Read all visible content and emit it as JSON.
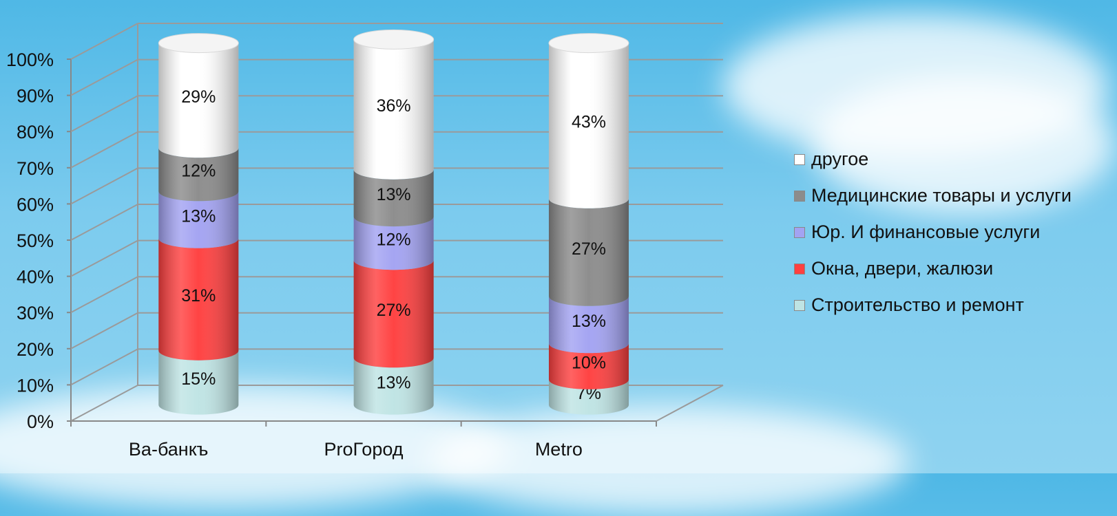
{
  "chart_data": {
    "type": "bar",
    "stacked": true,
    "style": "3d-cylinder",
    "categories": [
      "Ва-банкъ",
      "ProГород",
      "Metro"
    ],
    "series": [
      {
        "name": "Строительство и ремонт",
        "color": "#bfe4e4",
        "values": [
          15,
          13,
          7
        ]
      },
      {
        "name": "Окна, двери, жалюзи",
        "color": "#ff4040",
        "values": [
          31,
          27,
          10
        ]
      },
      {
        "name": "Юр. И финансовые услуги",
        "color": "#a3a3f2",
        "values": [
          13,
          12,
          13
        ]
      },
      {
        "name": "Медицинские товары и услуги",
        "color": "#8c8c8c",
        "values": [
          12,
          13,
          27
        ]
      },
      {
        "name": "другое",
        "color": "#ffffff",
        "values": [
          29,
          36,
          43
        ]
      }
    ],
    "ylim": [
      0,
      100
    ],
    "yticks": [
      "0%",
      "10%",
      "20%",
      "30%",
      "40%",
      "50%",
      "60%",
      "70%",
      "80%",
      "90%",
      "100%"
    ],
    "grid": true,
    "legend_position": "right"
  }
}
